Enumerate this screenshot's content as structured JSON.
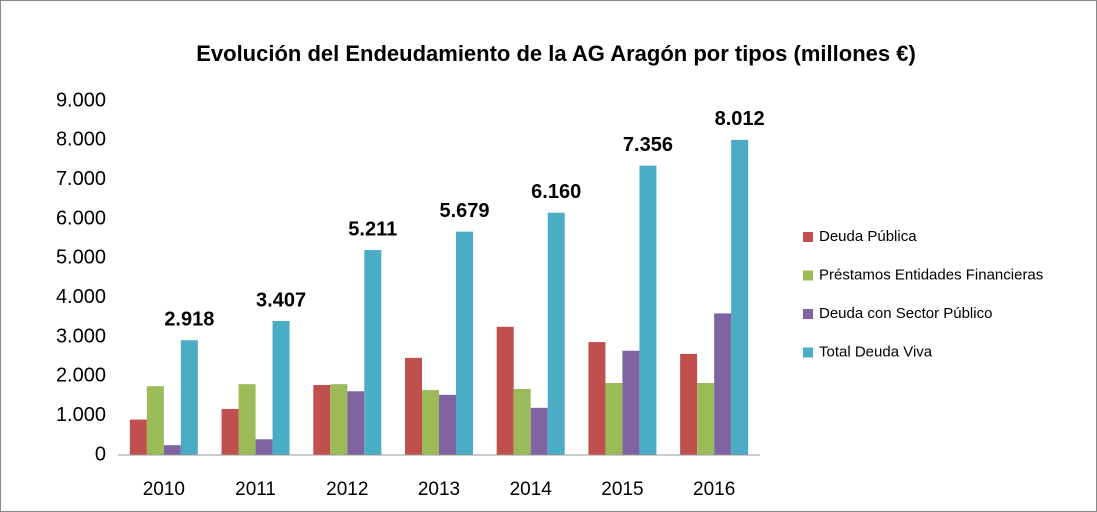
{
  "chart_data": {
    "type": "bar",
    "title": "Evolución del Endeudamiento de la AG Aragón por tipos (millones €)",
    "categories": [
      "2010",
      "2011",
      "2012",
      "2013",
      "2014",
      "2015",
      "2016"
    ],
    "series": [
      {
        "name": "Deuda Pública",
        "color": "#c0504d",
        "values": [
          900,
          1170,
          1780,
          2470,
          3260,
          2870,
          2570
        ]
      },
      {
        "name": "Préstamos Entidades Financieras",
        "color": "#9bbb59",
        "values": [
          1750,
          1800,
          1800,
          1650,
          1680,
          1830,
          1830
        ]
      },
      {
        "name": "Deuda con Sector Público",
        "color": "#8064a2",
        "values": [
          250,
          400,
          1620,
          1530,
          1200,
          2650,
          3600
        ]
      },
      {
        "name": "Total Deuda Viva",
        "color": "#4bacc6",
        "values": [
          2918,
          3407,
          5211,
          5679,
          6160,
          7356,
          8012
        ],
        "value_labels": [
          "2.918",
          "3.407",
          "5.211",
          "5.679",
          "6.160",
          "7.356",
          "8.012"
        ]
      }
    ],
    "ylim": [
      0,
      9000
    ],
    "yticks": [
      {
        "value": 0,
        "label": "0"
      },
      {
        "value": 1000,
        "label": "1.000"
      },
      {
        "value": 2000,
        "label": "2.000"
      },
      {
        "value": 3000,
        "label": "3.000"
      },
      {
        "value": 4000,
        "label": "4.000"
      },
      {
        "value": 5000,
        "label": "5.000"
      },
      {
        "value": 6000,
        "label": "6.000"
      },
      {
        "value": 7000,
        "label": "7.000"
      },
      {
        "value": 8000,
        "label": "8.000"
      },
      {
        "value": 9000,
        "label": "9.000"
      }
    ],
    "legend": "right"
  }
}
